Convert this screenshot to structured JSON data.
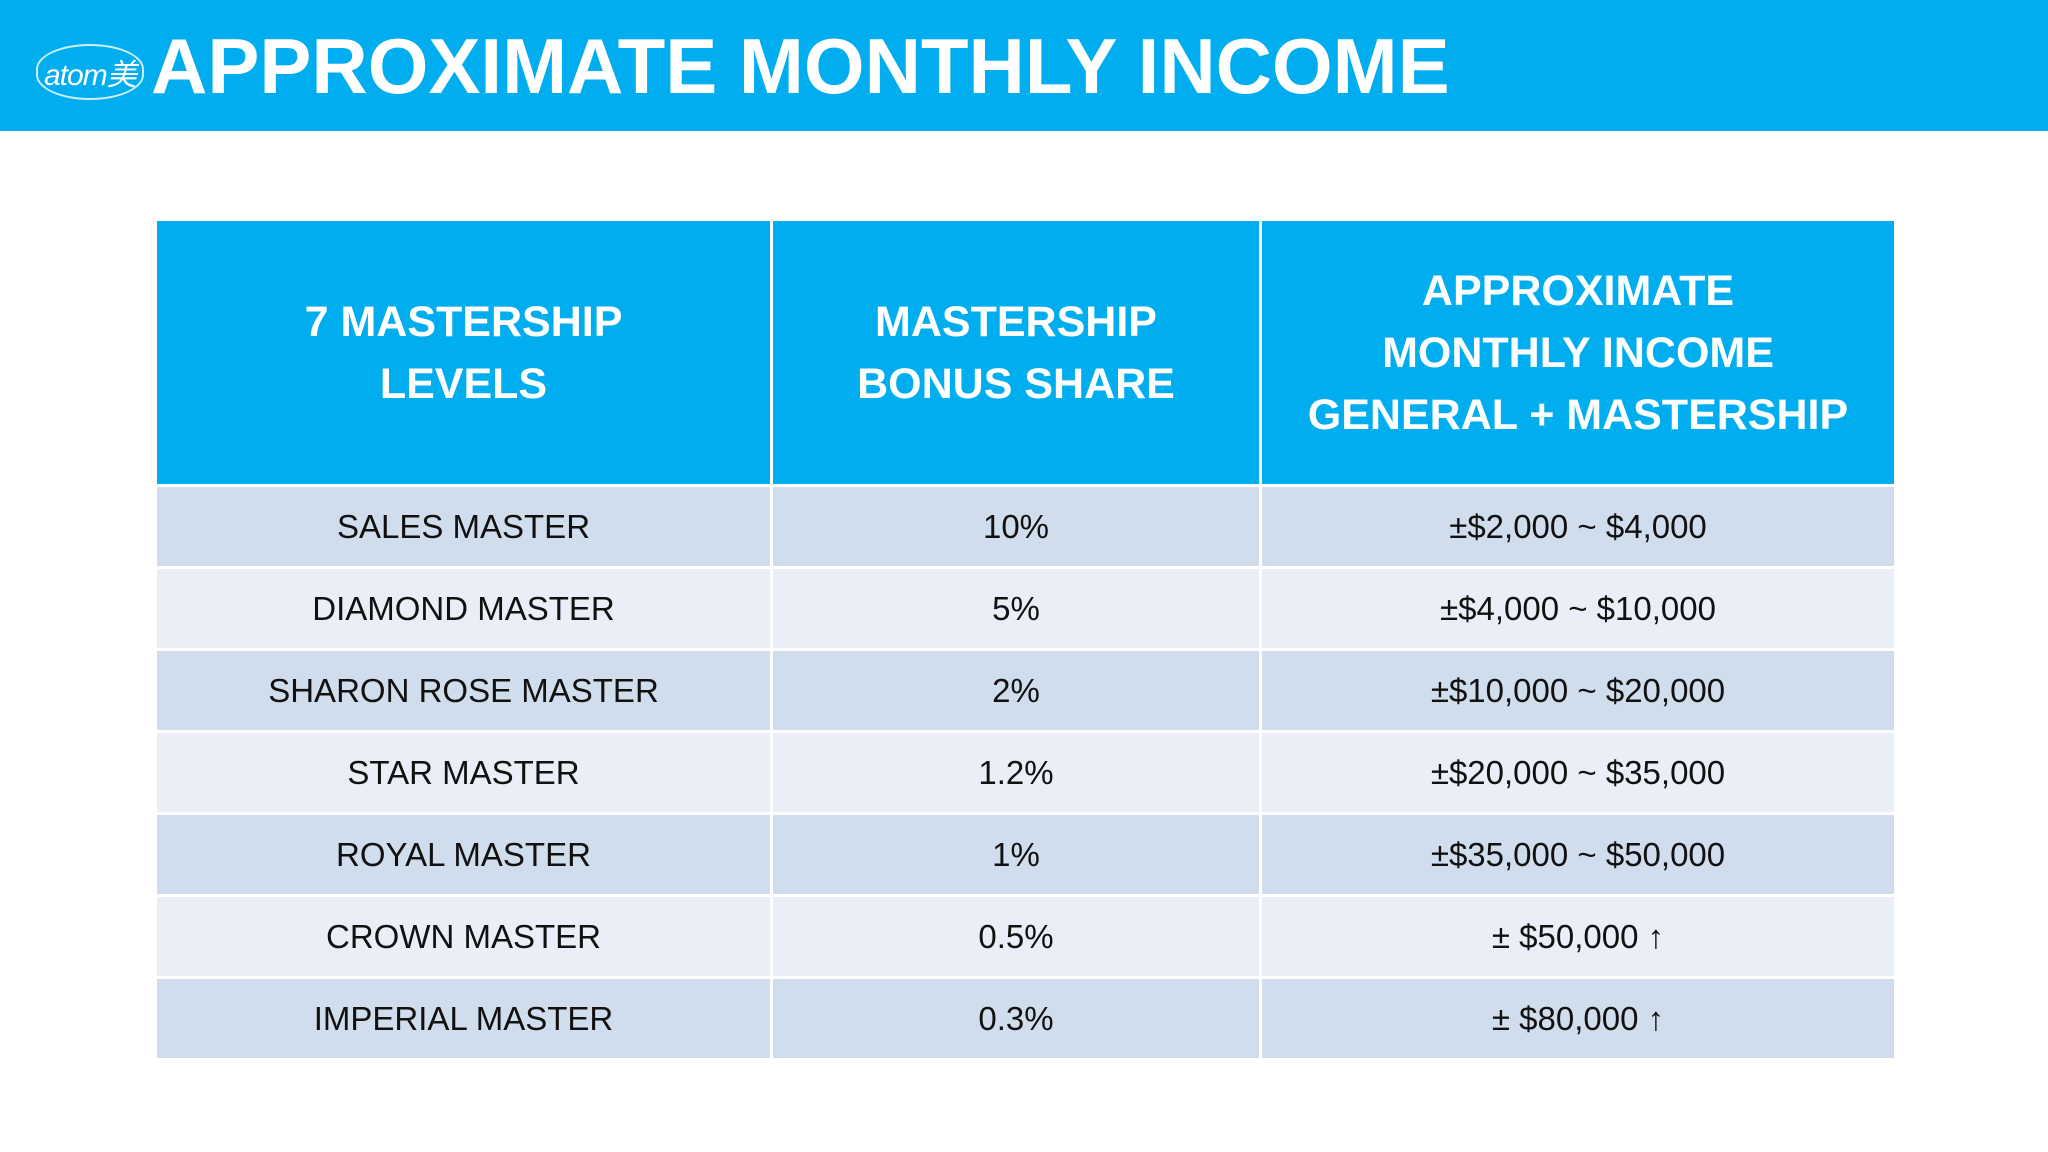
{
  "header": {
    "logo": "atom美",
    "title": "APPROXIMATE MONTHLY INCOME"
  },
  "table": {
    "columns": [
      [
        "7 MASTERSHIP",
        "LEVELS"
      ],
      [
        "MASTERSHIP",
        "BONUS SHARE"
      ],
      [
        "APPROXIMATE",
        "MONTHLY INCOME",
        "GENERAL + MASTERSHIP"
      ]
    ],
    "rows": [
      [
        "SALES MASTER",
        "10%",
        "±$2,000 ~ $4,000"
      ],
      [
        "DIAMOND MASTER",
        "5%",
        "±$4,000 ~ $10,000"
      ],
      [
        "SHARON ROSE MASTER",
        "2%",
        "±$10,000 ~ $20,000"
      ],
      [
        "STAR MASTER",
        "1.2%",
        "±$20,000 ~ $35,000"
      ],
      [
        "ROYAL MASTER",
        "1%",
        "±$35,000 ~ $50,000"
      ],
      [
        "CROWN MASTER",
        "0.5%",
        "± $50,000 ↑"
      ],
      [
        "IMPERIAL MASTER",
        "0.3%",
        "± $80,000 ↑"
      ]
    ]
  }
}
